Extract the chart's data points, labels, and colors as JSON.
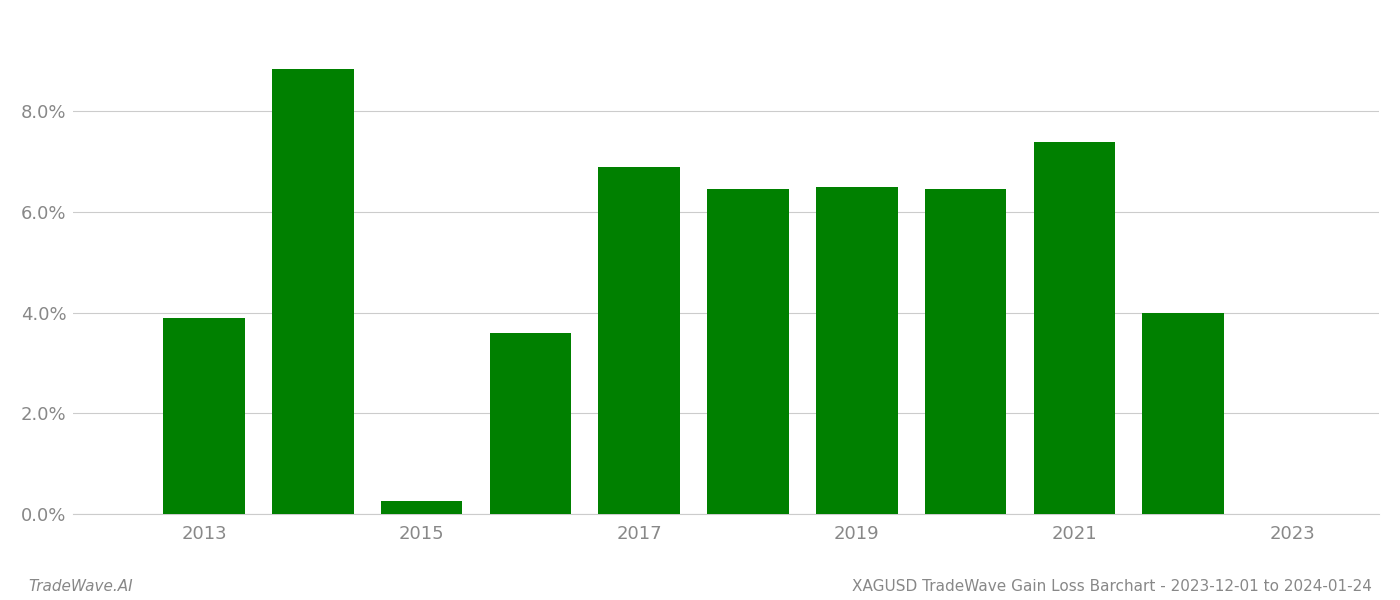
{
  "years": [
    2013,
    2014,
    2015,
    2016,
    2017,
    2018,
    2019,
    2020,
    2021,
    2022
  ],
  "values": [
    0.039,
    0.0885,
    0.0025,
    0.036,
    0.069,
    0.0645,
    0.065,
    0.0645,
    0.074,
    0.04
  ],
  "bar_color": "#008000",
  "background_color": "#ffffff",
  "xtick_labels": [
    "2013",
    "2015",
    "2017",
    "2019",
    "2021",
    "2023"
  ],
  "xtick_positions": [
    2013,
    2015,
    2017,
    2019,
    2021,
    2023
  ],
  "ytick_values": [
    0.0,
    0.02,
    0.04,
    0.06,
    0.08
  ],
  "ylim": [
    0,
    0.098
  ],
  "xlim": [
    2011.8,
    2023.8
  ],
  "footer_left": "TradeWave.AI",
  "footer_right": "XAGUSD TradeWave Gain Loss Barchart - 2023-12-01 to 2024-01-24",
  "footer_fontsize": 11,
  "tick_label_color": "#888888",
  "grid_color": "#cccccc",
  "bar_width": 0.75
}
